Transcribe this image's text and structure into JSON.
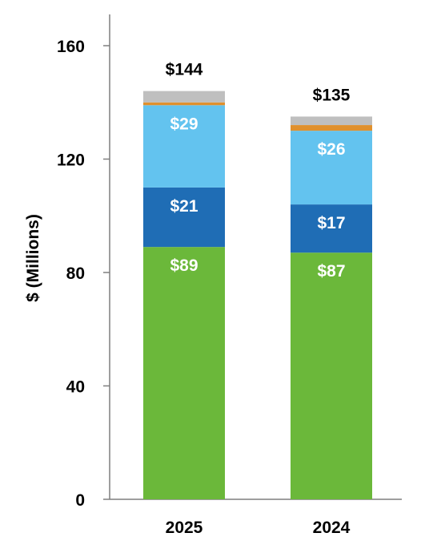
{
  "chart_data": {
    "type": "bar",
    "stacked": true,
    "categories": [
      "2025",
      "2024"
    ],
    "series": [
      {
        "values": [
          89,
          87
        ],
        "color": "#6bb83a",
        "labels": [
          "$89",
          "$87"
        ]
      },
      {
        "values": [
          21,
          17
        ],
        "color": "#1f6db5",
        "labels": [
          "$21",
          "$17"
        ]
      },
      {
        "values": [
          29,
          26
        ],
        "color": "#63c3ef",
        "labels": [
          "$29",
          "$26"
        ]
      },
      {
        "values": [
          1,
          2
        ],
        "color": "#e0902d",
        "labels": [
          "",
          ""
        ]
      },
      {
        "values": [
          4,
          3
        ],
        "color": "#bfbfbf",
        "labels": [
          "",
          ""
        ]
      }
    ],
    "totals": [
      144,
      135
    ],
    "total_labels": [
      "$144",
      "$135"
    ],
    "ylabel": "$ (Millions)",
    "ylim": [
      0,
      160
    ],
    "yticks": [
      0,
      40,
      80,
      120,
      160
    ],
    "ytick_labels": [
      "0",
      "40",
      "80",
      "120",
      "160"
    ],
    "grid": false
  }
}
